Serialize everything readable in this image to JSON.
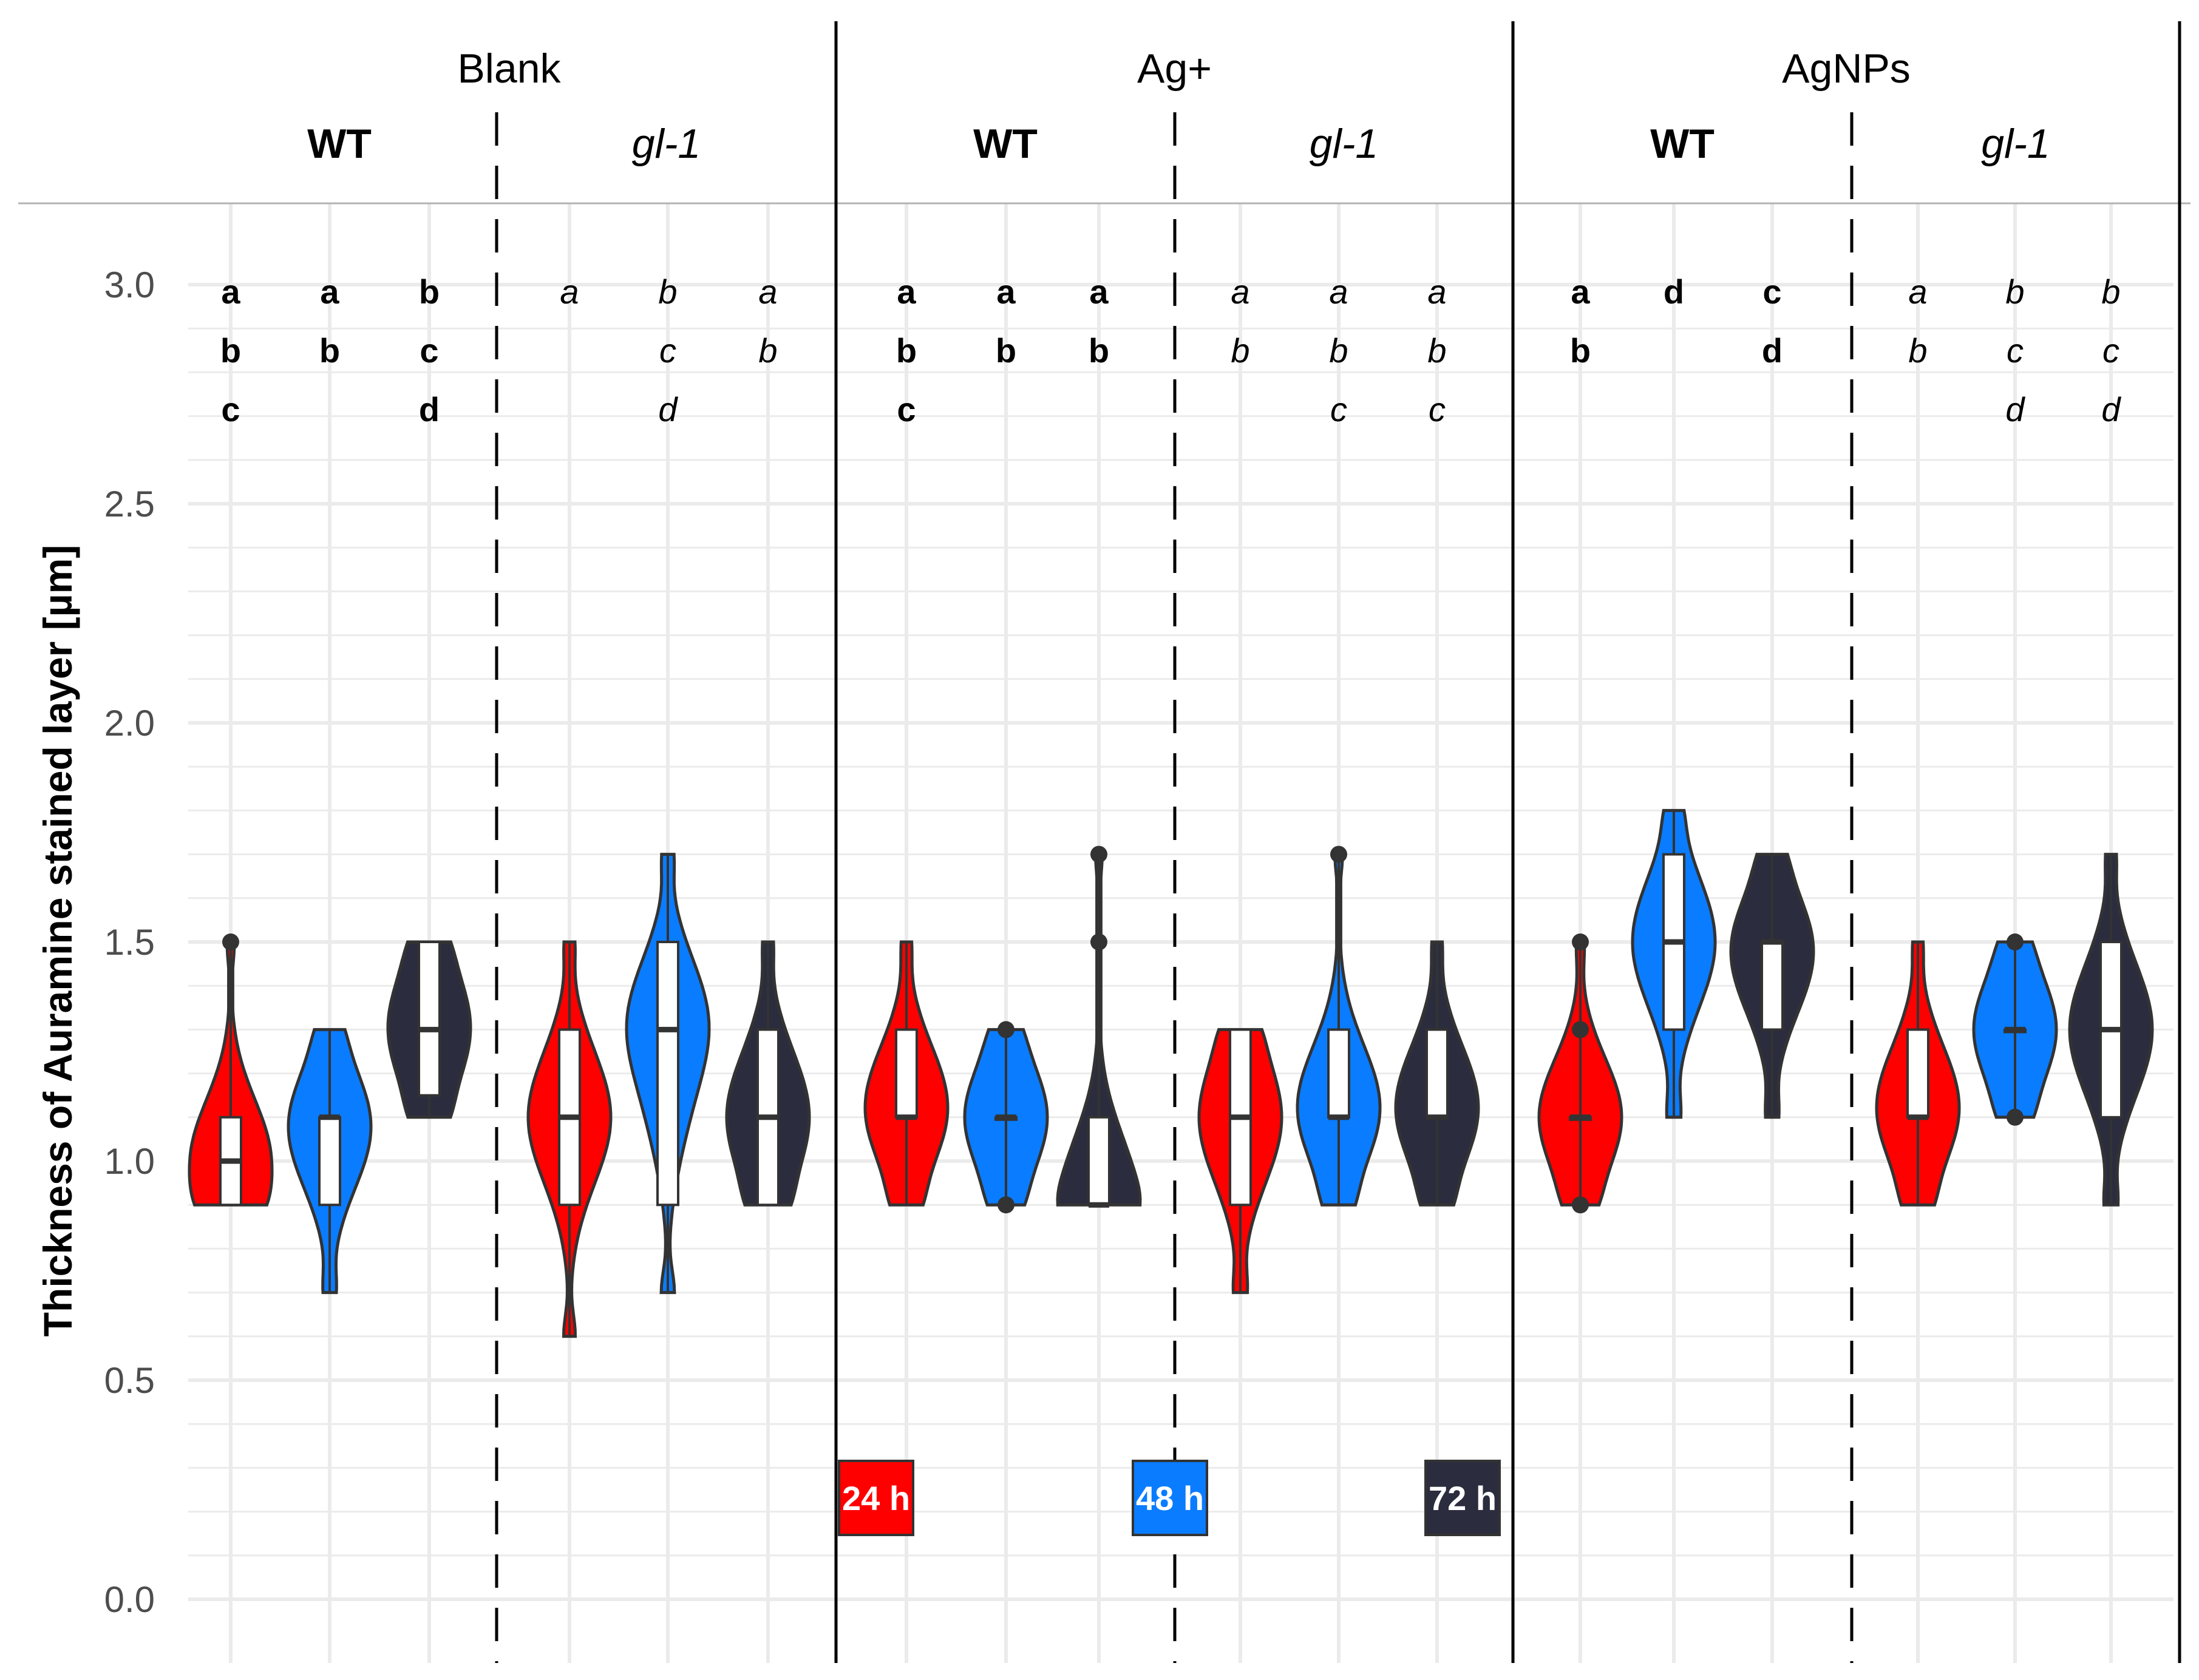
{
  "chart_data": {
    "type": "violin",
    "ylabel": "Thickness of Auramine stained layer [µm]",
    "xlabel": "",
    "ylim": [
      0,
      3.15
    ],
    "y_ticks": [
      "0.0",
      "0.5",
      "1.0",
      "1.5",
      "2.0",
      "2.5",
      "3.0"
    ],
    "grid": true,
    "colors": {
      "24 h": "#ff0000",
      "48 h": "#0a7cff",
      "72 h": "#2b2d3e"
    },
    "legend": [
      "24 h",
      "48 h",
      "72 h"
    ],
    "panels": [
      {
        "title": "Blank",
        "groups": [
          {
            "genotype": "WT",
            "style": "bold",
            "series": [
              {
                "time": "24 h",
                "min": 0.9,
                "q1": 0.9,
                "median": 1.0,
                "q3": 1.1,
                "max": 1.5,
                "letters": [
                  "a",
                  "b",
                  "c"
                ],
                "outliers": [
                  1.5
                ]
              },
              {
                "time": "48 h",
                "min": 0.7,
                "q1": 0.9,
                "median": 1.1,
                "q3": 1.1,
                "max": 1.3,
                "letters": [
                  "a",
                  "b"
                ],
                "outliers": []
              },
              {
                "time": "72 h",
                "min": 1.1,
                "q1": 1.15,
                "median": 1.3,
                "q3": 1.5,
                "max": 1.5,
                "letters": [
                  "b",
                  "c",
                  "d"
                ],
                "outliers": []
              }
            ]
          },
          {
            "genotype": "gl-1",
            "style": "italic",
            "series": [
              {
                "time": "24 h",
                "min": 0.6,
                "q1": 0.9,
                "median": 1.1,
                "q3": 1.3,
                "max": 1.5,
                "letters": [
                  "a"
                ],
                "outliers": []
              },
              {
                "time": "48 h",
                "min": 0.7,
                "q1": 0.9,
                "median": 1.3,
                "q3": 1.5,
                "max": 1.7,
                "letters": [
                  "b",
                  "c",
                  "d"
                ],
                "outliers": []
              },
              {
                "time": "72 h",
                "min": 0.9,
                "q1": 0.9,
                "median": 1.1,
                "q3": 1.3,
                "max": 1.5,
                "letters": [
                  "a",
                  "b"
                ],
                "outliers": []
              }
            ]
          }
        ]
      },
      {
        "title": "Ag+",
        "groups": [
          {
            "genotype": "WT",
            "style": "bold",
            "series": [
              {
                "time": "24 h",
                "min": 0.9,
                "q1": 1.1,
                "median": 1.1,
                "q3": 1.3,
                "max": 1.5,
                "letters": [
                  "a",
                  "b",
                  "c"
                ],
                "outliers": []
              },
              {
                "time": "48 h",
                "min": 0.9,
                "q1": 1.1,
                "median": 1.1,
                "q3": 1.1,
                "max": 1.3,
                "letters": [
                  "a",
                  "b"
                ],
                "outliers": [
                  0.9,
                  1.3
                ]
              },
              {
                "time": "72 h",
                "min": 0.9,
                "q1": 0.9,
                "median": 0.9,
                "q3": 1.1,
                "max": 1.7,
                "letters": [
                  "a",
                  "b"
                ],
                "outliers": [
                  1.5,
                  1.7
                ]
              }
            ]
          },
          {
            "genotype": "gl-1",
            "style": "italic",
            "series": [
              {
                "time": "24 h",
                "min": 0.7,
                "q1": 0.9,
                "median": 1.1,
                "q3": 1.3,
                "max": 1.3,
                "letters": [
                  "a",
                  "b"
                ],
                "outliers": []
              },
              {
                "time": "48 h",
                "min": 0.9,
                "q1": 1.1,
                "median": 1.1,
                "q3": 1.3,
                "max": 1.7,
                "letters": [
                  "a",
                  "b",
                  "c"
                ],
                "outliers": [
                  1.7
                ]
              },
              {
                "time": "72 h",
                "min": 0.9,
                "q1": 1.1,
                "median": 1.1,
                "q3": 1.3,
                "max": 1.5,
                "letters": [
                  "a",
                  "b",
                  "c"
                ],
                "outliers": []
              }
            ]
          }
        ]
      },
      {
        "title": "AgNPs",
        "groups": [
          {
            "genotype": "WT",
            "style": "bold",
            "series": [
              {
                "time": "24 h",
                "min": 0.9,
                "q1": 1.1,
                "median": 1.1,
                "q3": 1.1,
                "max": 1.5,
                "letters": [
                  "a",
                  "b"
                ],
                "outliers": [
                  0.9,
                  1.3,
                  1.5
                ]
              },
              {
                "time": "48 h",
                "min": 1.1,
                "q1": 1.3,
                "median": 1.5,
                "q3": 1.7,
                "max": 1.8,
                "letters": [
                  "d"
                ],
                "outliers": []
              },
              {
                "time": "72 h",
                "min": 1.1,
                "q1": 1.3,
                "median": 1.5,
                "q3": 1.5,
                "max": 1.7,
                "letters": [
                  "c",
                  "d"
                ],
                "outliers": []
              }
            ]
          },
          {
            "genotype": "gl-1",
            "style": "italic",
            "series": [
              {
                "time": "24 h",
                "min": 0.9,
                "q1": 1.1,
                "median": 1.1,
                "q3": 1.3,
                "max": 1.5,
                "letters": [
                  "a",
                  "b"
                ],
                "outliers": []
              },
              {
                "time": "48 h",
                "min": 1.1,
                "q1": 1.3,
                "median": 1.3,
                "q3": 1.3,
                "max": 1.5,
                "letters": [
                  "b",
                  "c",
                  "d"
                ],
                "outliers": [
                  1.1,
                  1.5
                ]
              },
              {
                "time": "72 h",
                "min": 0.9,
                "q1": 1.1,
                "median": 1.3,
                "q3": 1.5,
                "max": 1.7,
                "letters": [
                  "b",
                  "c",
                  "d"
                ],
                "outliers": []
              }
            ]
          }
        ]
      }
    ]
  }
}
